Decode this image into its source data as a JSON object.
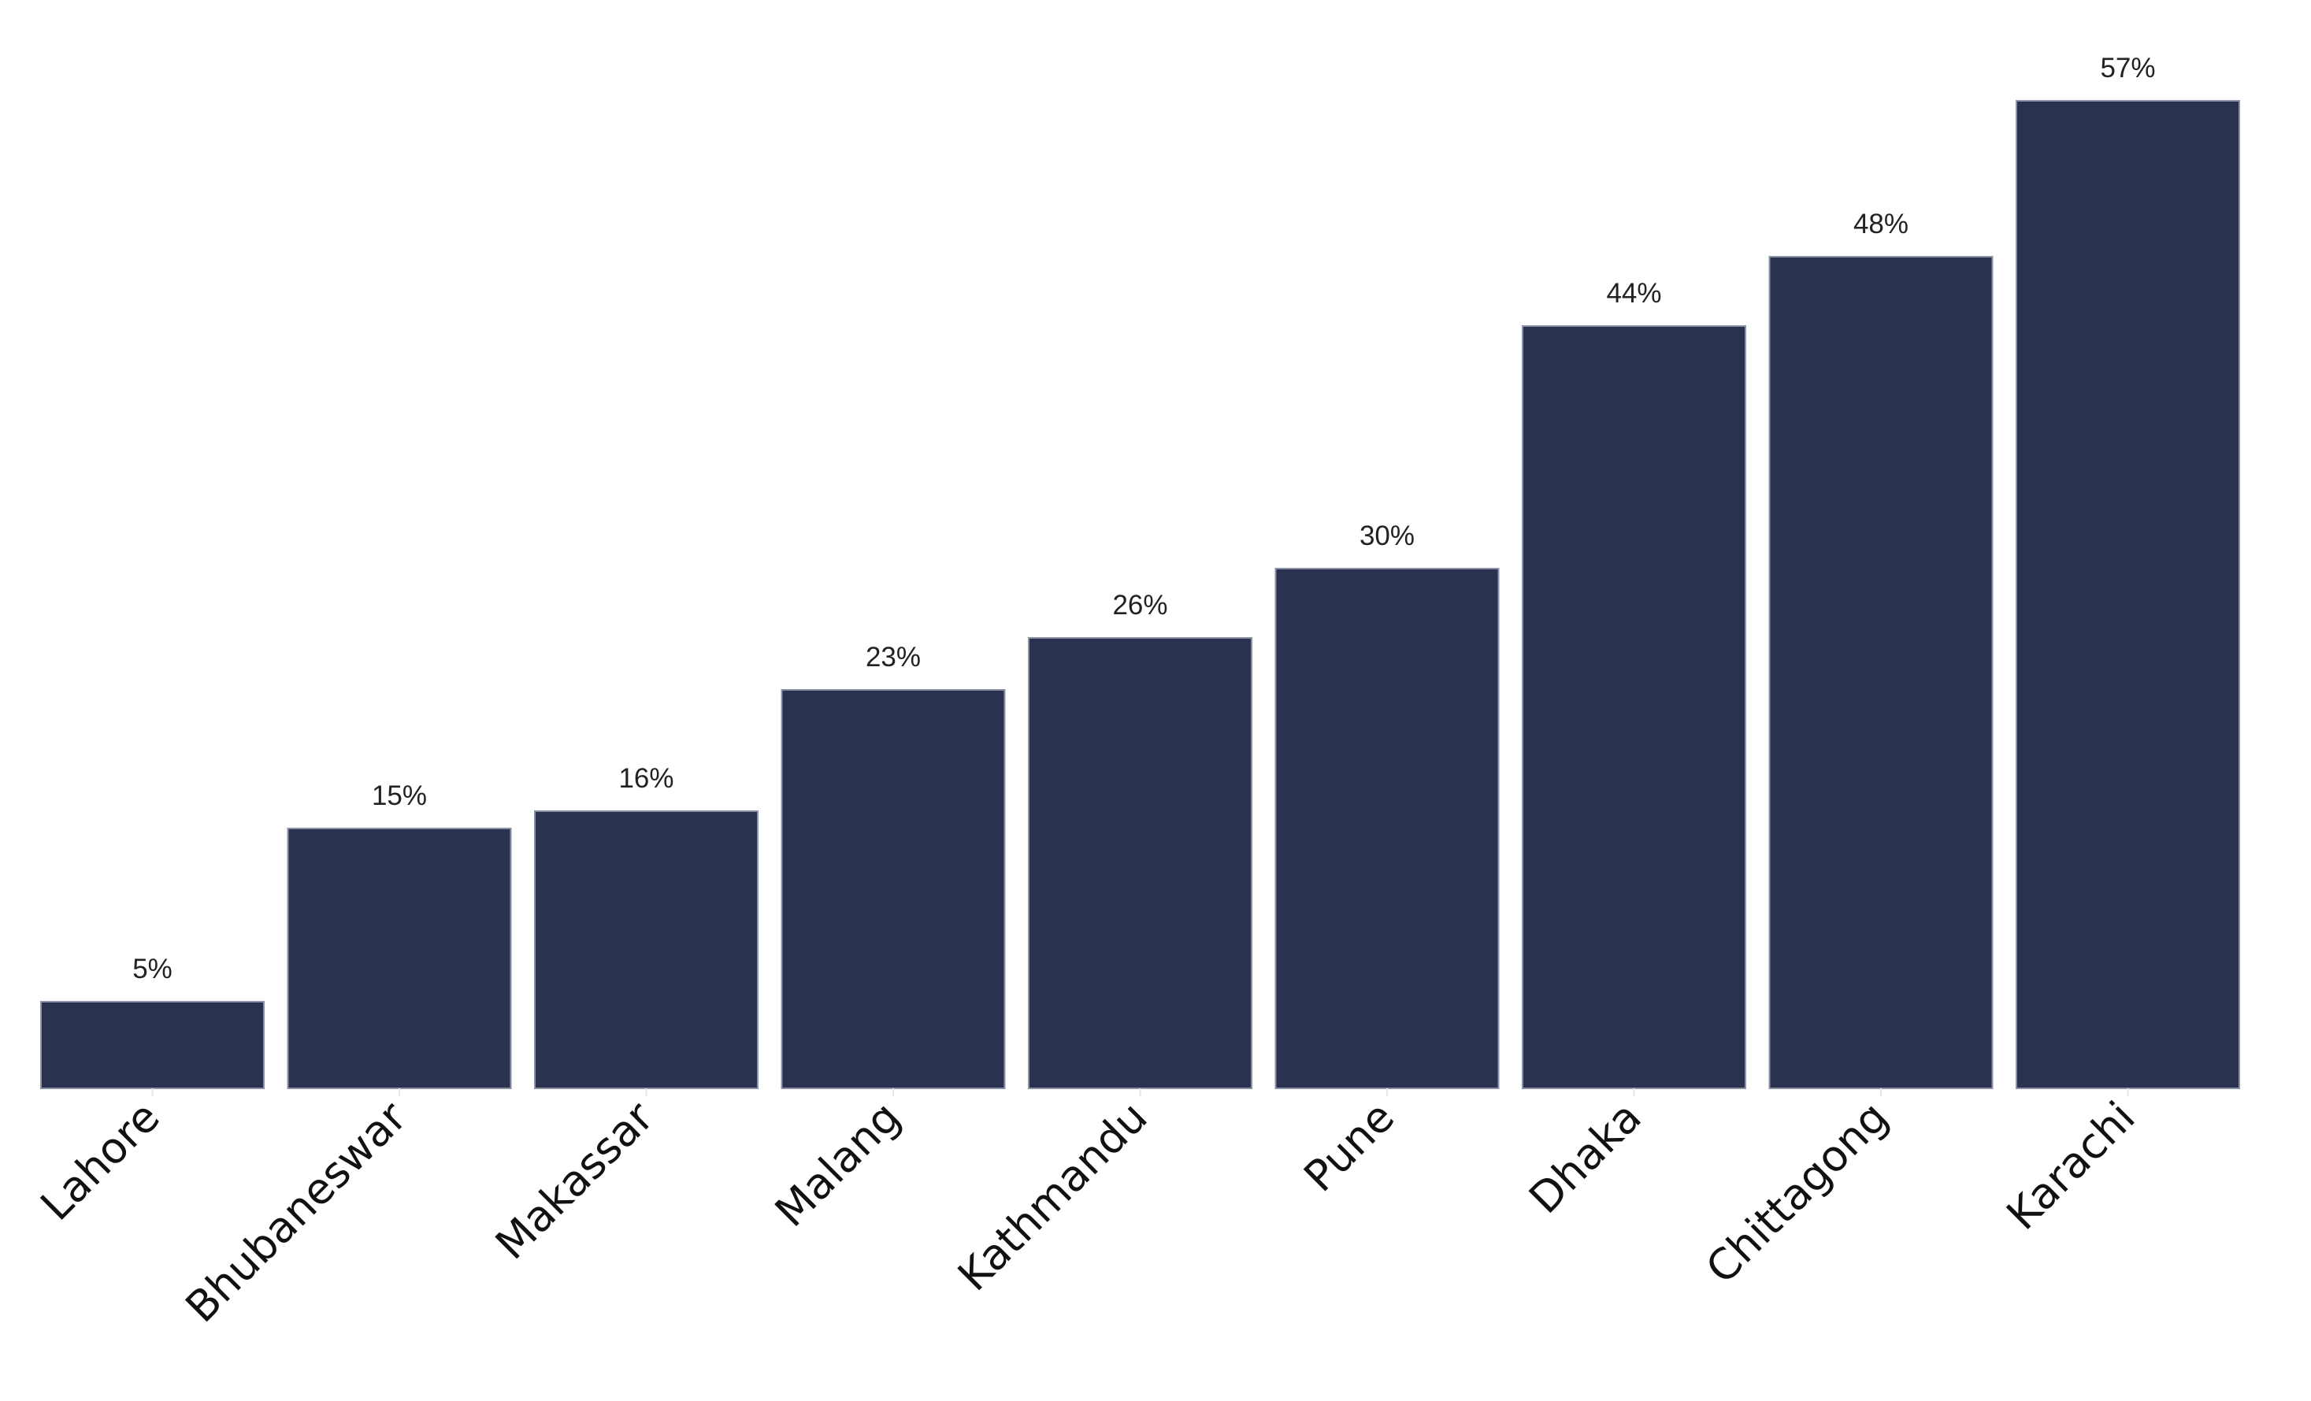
{
  "chart_data": {
    "type": "bar",
    "title": "",
    "xlabel": "",
    "ylabel": "",
    "categories": [
      "Lahore",
      "Bhubaneswar",
      "Makassar",
      "Malang",
      "Kathmandu",
      "Pune",
      "Dhaka",
      "Chittagong",
      "Karachi"
    ],
    "values": [
      5,
      15,
      16,
      23,
      26,
      30,
      44,
      48,
      57
    ],
    "data_labels": [
      "5%",
      "15%",
      "16%",
      "23%",
      "26%",
      "30%",
      "44%",
      "48%",
      "57%"
    ],
    "ylim": [
      0,
      57
    ],
    "grid": false,
    "legend": "none",
    "bar_color": "#2a3250"
  }
}
